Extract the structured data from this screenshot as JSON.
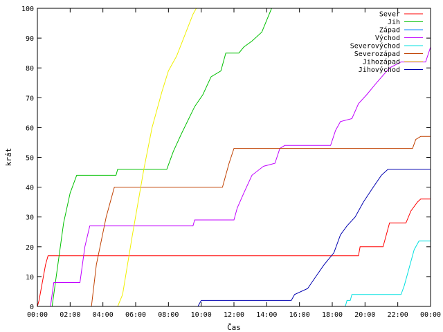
{
  "chart_data": {
    "type": "line",
    "step": true,
    "xlabel": "Čas",
    "ylabel": "krát",
    "xlim": [
      0,
      24
    ],
    "ylim": [
      0,
      100
    ],
    "x_ticks": [
      {
        "value": 0,
        "label": "00:00"
      },
      {
        "value": 2,
        "label": "02:00"
      },
      {
        "value": 4,
        "label": "04:00"
      },
      {
        "value": 6,
        "label": "06:00"
      },
      {
        "value": 8,
        "label": "08:00"
      },
      {
        "value": 10,
        "label": "10:00"
      },
      {
        "value": 12,
        "label": "12:00"
      },
      {
        "value": 14,
        "label": "14:00"
      },
      {
        "value": 16,
        "label": "16:00"
      },
      {
        "value": 18,
        "label": "18:00"
      },
      {
        "value": 20,
        "label": "20:00"
      },
      {
        "value": 22,
        "label": "22:00"
      },
      {
        "value": 24,
        "label": "00:00"
      }
    ],
    "y_ticks": [
      0,
      10,
      20,
      30,
      40,
      50,
      60,
      70,
      80,
      90,
      100
    ],
    "grid": false,
    "legend_position": "top-right",
    "series": [
      {
        "name": "Sever",
        "color": "#ff0000",
        "points": [
          [
            0,
            0
          ],
          [
            0.1,
            2
          ],
          [
            0.3,
            8
          ],
          [
            0.5,
            14
          ],
          [
            0.65,
            17
          ],
          [
            19.6,
            17
          ],
          [
            19.7,
            20
          ],
          [
            21.1,
            20
          ],
          [
            21.5,
            28
          ],
          [
            22.5,
            28
          ],
          [
            22.8,
            32
          ],
          [
            23.2,
            35
          ],
          [
            23.4,
            36
          ],
          [
            24,
            36
          ]
        ]
      },
      {
        "name": "Jih",
        "color": "#00c000",
        "points": [
          [
            0.9,
            0
          ],
          [
            1.2,
            12
          ],
          [
            1.6,
            28
          ],
          [
            2.0,
            38
          ],
          [
            2.4,
            44
          ],
          [
            4.8,
            44
          ],
          [
            4.9,
            46
          ],
          [
            7.9,
            46
          ],
          [
            8.3,
            52
          ],
          [
            8.8,
            58
          ],
          [
            9.6,
            67
          ],
          [
            10.1,
            71
          ],
          [
            10.6,
            77
          ],
          [
            11.2,
            79
          ],
          [
            11.5,
            85
          ],
          [
            12.3,
            85
          ],
          [
            12.6,
            87
          ],
          [
            13.1,
            89
          ],
          [
            13.7,
            92
          ],
          [
            14.0,
            96
          ],
          [
            14.3,
            100
          ]
        ]
      },
      {
        "name": "Západ",
        "color": "#0080ff",
        "points": []
      },
      {
        "name": "Východ",
        "color": "#c000ff",
        "points": [
          [
            0.8,
            0
          ],
          [
            1.0,
            8
          ],
          [
            2.6,
            8
          ],
          [
            2.9,
            20
          ],
          [
            3.2,
            27
          ],
          [
            9.5,
            27
          ],
          [
            9.6,
            29
          ],
          [
            12.0,
            29
          ],
          [
            12.2,
            33
          ],
          [
            12.6,
            38
          ],
          [
            13.1,
            44
          ],
          [
            13.8,
            47
          ],
          [
            14.5,
            48
          ],
          [
            14.8,
            53
          ],
          [
            15.1,
            54
          ],
          [
            17.9,
            54
          ],
          [
            18.2,
            59
          ],
          [
            18.5,
            62
          ],
          [
            19.2,
            63
          ],
          [
            19.6,
            68
          ],
          [
            20.1,
            71
          ],
          [
            20.7,
            75
          ],
          [
            21.5,
            80
          ],
          [
            22.2,
            82
          ],
          [
            23.7,
            82
          ],
          [
            24,
            87
          ]
        ]
      },
      {
        "name": "Severovýchod",
        "color": "#00e0e0",
        "points": [
          [
            18.8,
            0
          ],
          [
            18.9,
            2
          ],
          [
            19.1,
            2
          ],
          [
            19.2,
            4
          ],
          [
            22.2,
            4
          ],
          [
            22.4,
            7
          ],
          [
            22.7,
            13
          ],
          [
            23.0,
            19
          ],
          [
            23.3,
            22
          ],
          [
            24,
            22
          ]
        ]
      },
      {
        "name": "Severozápad",
        "color": "#c04000",
        "points": [
          [
            3.3,
            0
          ],
          [
            3.6,
            14
          ],
          [
            4.2,
            30
          ],
          [
            4.7,
            40
          ],
          [
            11.3,
            40
          ],
          [
            11.7,
            48
          ],
          [
            12.0,
            53
          ],
          [
            22.9,
            53
          ],
          [
            23.1,
            56
          ],
          [
            23.4,
            57
          ],
          [
            24,
            57
          ]
        ]
      },
      {
        "name": "Jihozápad",
        "color": "#f0f000",
        "points": [
          [
            4.9,
            0
          ],
          [
            5.2,
            4
          ],
          [
            5.8,
            24
          ],
          [
            6.5,
            46
          ],
          [
            7.0,
            60
          ],
          [
            7.6,
            72
          ],
          [
            8.0,
            79
          ],
          [
            8.5,
            84
          ],
          [
            9.0,
            91
          ],
          [
            9.5,
            98
          ],
          [
            9.7,
            100
          ]
        ]
      },
      {
        "name": "Jihovýchod",
        "color": "#0000b0",
        "points": [
          [
            9.8,
            0
          ],
          [
            10.0,
            2
          ],
          [
            15.5,
            2
          ],
          [
            15.7,
            4
          ],
          [
            16.5,
            6
          ],
          [
            17.0,
            10
          ],
          [
            17.5,
            14
          ],
          [
            18.1,
            18
          ],
          [
            18.5,
            24
          ],
          [
            18.9,
            27
          ],
          [
            19.4,
            30
          ],
          [
            19.9,
            35
          ],
          [
            20.5,
            40
          ],
          [
            21.0,
            44
          ],
          [
            21.4,
            46
          ],
          [
            24,
            46
          ]
        ]
      }
    ]
  }
}
